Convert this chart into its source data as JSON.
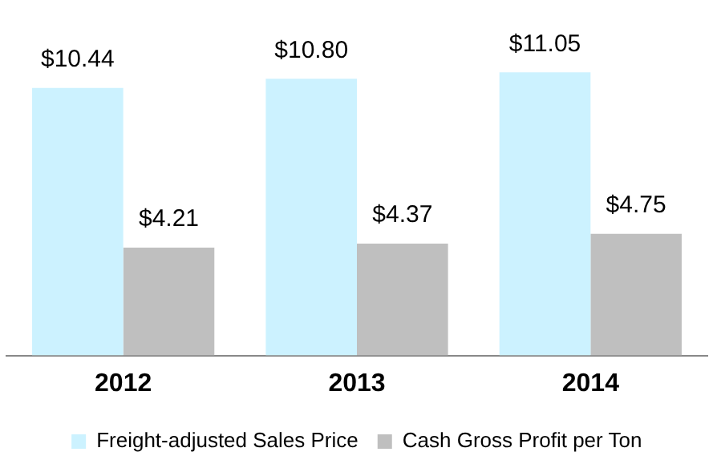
{
  "chart_data": {
    "type": "bar",
    "categories": [
      "2012",
      "2013",
      "2014"
    ],
    "series": [
      {
        "name": "Freight-adjusted Sales Price",
        "color": "#ccf2ff",
        "values": [
          10.44,
          10.8,
          11.05
        ],
        "value_labels": [
          "$10.44",
          "$10.80",
          "$11.05"
        ]
      },
      {
        "name": "Cash Gross Profit per Ton",
        "color": "#bfbfbf",
        "values": [
          4.21,
          4.37,
          4.75
        ],
        "value_labels": [
          "$4.21",
          "$4.37",
          "$4.75"
        ]
      }
    ],
    "tick_labels": "x",
    "grid": false,
    "legend": "bottom"
  }
}
